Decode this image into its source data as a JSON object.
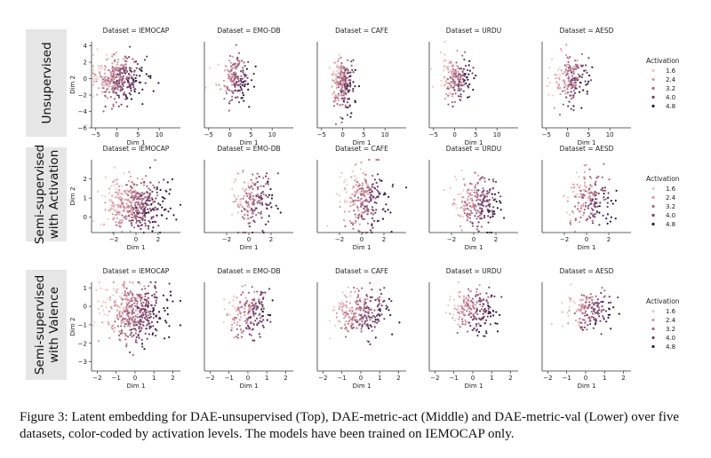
{
  "figure": {
    "row_labels": [
      [
        "Unsupervised"
      ],
      [
        "Semi-supervised",
        "with Activation"
      ],
      [
        "Semi-supervised",
        "with Valence"
      ]
    ],
    "legend": {
      "title": "Activation",
      "levels": [
        "1.6",
        "2.4",
        "3.2",
        "4.0",
        "4.8"
      ],
      "colors": [
        "#efc8c4",
        "#d99aa4",
        "#a8667f",
        "#6d3f66",
        "#2c1a3c"
      ]
    },
    "caption": "Figure 3: Latent embedding for DAE-unsupervised (Top), DAE-metric-act (Middle) and DAE-metric-val (Lower) over five datasets, color-coded by activation levels. The models have been trained on IEMOCAP only."
  },
  "chart_data": [
    {
      "type": "scatter",
      "row": 0,
      "col": 0,
      "title": "Dataset = IEMOCAP",
      "xlabel": "Dim 1",
      "ylabel": "Dim 2",
      "xlim": [
        -6,
        15
      ],
      "ylim": [
        -6,
        4.5
      ],
      "xticks": [
        -5,
        0,
        5,
        10
      ],
      "yticks": [
        -6,
        -4,
        -2,
        0,
        2,
        4
      ],
      "cloud": {
        "cx": 0,
        "cy": 0,
        "sx": 3,
        "sy": 1.4,
        "n": 330
      }
    },
    {
      "type": "scatter",
      "row": 0,
      "col": 1,
      "title": "Dataset = EMO-DB",
      "xlabel": "Dim 1",
      "ylabel": "",
      "xlim": [
        -6,
        15
      ],
      "ylim": [
        -6,
        4.5
      ],
      "xticks": [
        -5,
        0,
        5,
        10
      ],
      "yticks": [],
      "cloud": {
        "cx": 1,
        "cy": 0,
        "sx": 2,
        "sy": 1.3,
        "n": 170
      }
    },
    {
      "type": "scatter",
      "row": 0,
      "col": 2,
      "title": "Dataset = CAFE",
      "xlabel": "Dim 1",
      "ylabel": "",
      "xlim": [
        -6,
        15
      ],
      "ylim": [
        -6,
        4.5
      ],
      "xticks": [
        -5,
        0,
        5,
        10
      ],
      "yticks": [],
      "cloud": {
        "cx": 0,
        "cy": -0.5,
        "sx": 1.4,
        "sy": 1.5,
        "n": 210
      }
    },
    {
      "type": "scatter",
      "row": 0,
      "col": 3,
      "title": "Dataset = URDU",
      "xlabel": "Dim 1",
      "ylabel": "",
      "xlim": [
        -6,
        15
      ],
      "ylim": [
        -6,
        4.5
      ],
      "xticks": [
        -5,
        0,
        5,
        10
      ],
      "yticks": [],
      "cloud": {
        "cx": 0.5,
        "cy": 0,
        "sx": 1.8,
        "sy": 1.3,
        "n": 170
      }
    },
    {
      "type": "scatter",
      "row": 0,
      "col": 4,
      "title": "Dataset = AESD",
      "xlabel": "Dim 1",
      "ylabel": "",
      "xlim": [
        -6,
        15
      ],
      "ylim": [
        -6,
        4.5
      ],
      "xticks": [
        -5,
        0,
        5,
        10
      ],
      "yticks": [],
      "cloud": {
        "cx": 1,
        "cy": 0,
        "sx": 2.2,
        "sy": 1.5,
        "n": 170
      }
    },
    {
      "type": "scatter",
      "row": 1,
      "col": 0,
      "title": "Dataset = IEMOCAP",
      "xlabel": "Dim 1",
      "ylabel": "Dim 2",
      "xlim": [
        -4,
        4
      ],
      "ylim": [
        -0.8,
        3
      ],
      "xticks": [
        -2,
        0,
        2
      ],
      "yticks": [
        0,
        1,
        2
      ],
      "cloud": {
        "cx": 0,
        "cy": 0.6,
        "sx": 1.3,
        "sy": 0.7,
        "n": 420
      }
    },
    {
      "type": "scatter",
      "row": 1,
      "col": 1,
      "title": "Dataset = EMO-DB",
      "xlabel": "Dim 1",
      "ylabel": "",
      "xlim": [
        -4,
        4
      ],
      "ylim": [
        -0.8,
        3
      ],
      "xticks": [
        -2,
        0,
        2
      ],
      "yticks": [],
      "cloud": {
        "cx": 0.4,
        "cy": 0.9,
        "sx": 0.9,
        "sy": 0.8,
        "n": 170
      }
    },
    {
      "type": "scatter",
      "row": 1,
      "col": 2,
      "title": "Dataset = CAFE",
      "xlabel": "Dim 1",
      "ylabel": "",
      "xlim": [
        -4,
        4
      ],
      "ylim": [
        -0.8,
        3
      ],
      "xticks": [
        -2,
        0,
        2
      ],
      "yticks": [],
      "cloud": {
        "cx": 0.3,
        "cy": 0.9,
        "sx": 1,
        "sy": 0.8,
        "n": 240
      }
    },
    {
      "type": "scatter",
      "row": 1,
      "col": 3,
      "title": "Dataset = URDU",
      "xlabel": "Dim 1",
      "ylabel": "",
      "xlim": [
        -4,
        4
      ],
      "ylim": [
        -0.8,
        3
      ],
      "xticks": [
        -2,
        0,
        2
      ],
      "yticks": [],
      "cloud": {
        "cx": 0.3,
        "cy": 0.8,
        "sx": 1,
        "sy": 0.7,
        "n": 220
      }
    },
    {
      "type": "scatter",
      "row": 1,
      "col": 4,
      "title": "Dataset = AESD",
      "xlabel": "Dim 1",
      "ylabel": "",
      "xlim": [
        -4,
        4
      ],
      "ylim": [
        -0.8,
        3
      ],
      "xticks": [
        -2,
        0,
        2
      ],
      "yticks": [],
      "cloud": {
        "cx": 0.3,
        "cy": 0.9,
        "sx": 1,
        "sy": 0.7,
        "n": 170
      }
    },
    {
      "type": "scatter",
      "row": 2,
      "col": 0,
      "title": "Dataset = IEMOCAP",
      "xlabel": "Dim 1",
      "ylabel": "Dim 2",
      "xlim": [
        -2.3,
        2.4
      ],
      "ylim": [
        -3.5,
        1.3
      ],
      "xticks": [
        -2,
        -1,
        0,
        1,
        2
      ],
      "yticks": [
        -3,
        -2,
        -1,
        0,
        1
      ],
      "cloud": {
        "cx": 0,
        "cy": -0.3,
        "sx": 0.8,
        "sy": 0.8,
        "n": 420
      }
    },
    {
      "type": "scatter",
      "row": 2,
      "col": 1,
      "title": "Dataset = EMO-DB",
      "xlabel": "Dim 1",
      "ylabel": "",
      "xlim": [
        -2.3,
        2.4
      ],
      "ylim": [
        -3.5,
        1.3
      ],
      "xticks": [
        -2,
        -1,
        0,
        1,
        2
      ],
      "yticks": [],
      "cloud": {
        "cx": 0,
        "cy": -0.4,
        "sx": 0.6,
        "sy": 0.6,
        "n": 180
      }
    },
    {
      "type": "scatter",
      "row": 2,
      "col": 2,
      "title": "Dataset = CAFE",
      "xlabel": "Dim 1",
      "ylabel": "",
      "xlim": [
        -2.3,
        2.4
      ],
      "ylim": [
        -3.5,
        1.3
      ],
      "xticks": [
        -2,
        -1,
        0,
        1,
        2
      ],
      "yticks": [],
      "cloud": {
        "cx": 0,
        "cy": -0.3,
        "sx": 0.7,
        "sy": 0.7,
        "n": 240
      }
    },
    {
      "type": "scatter",
      "row": 2,
      "col": 3,
      "title": "Dataset = URDU",
      "xlabel": "Dim 1",
      "ylabel": "",
      "xlim": [
        -2.3,
        2.4
      ],
      "ylim": [
        -3.5,
        1.3
      ],
      "xticks": [
        -2,
        -1,
        0,
        1,
        2
      ],
      "yticks": [],
      "cloud": {
        "cx": 0,
        "cy": -0.3,
        "sx": 0.6,
        "sy": 0.6,
        "n": 200
      }
    },
    {
      "type": "scatter",
      "row": 2,
      "col": 4,
      "title": "Dataset = AESD",
      "xlabel": "Dim 1",
      "ylabel": "",
      "xlim": [
        -2.3,
        2.4
      ],
      "ylim": [
        -3.5,
        1.3
      ],
      "xticks": [
        -2,
        -1,
        0,
        1,
        2
      ],
      "yticks": [],
      "cloud": {
        "cx": 0.2,
        "cy": -0.2,
        "sx": 0.6,
        "sy": 0.5,
        "n": 170
      }
    }
  ]
}
